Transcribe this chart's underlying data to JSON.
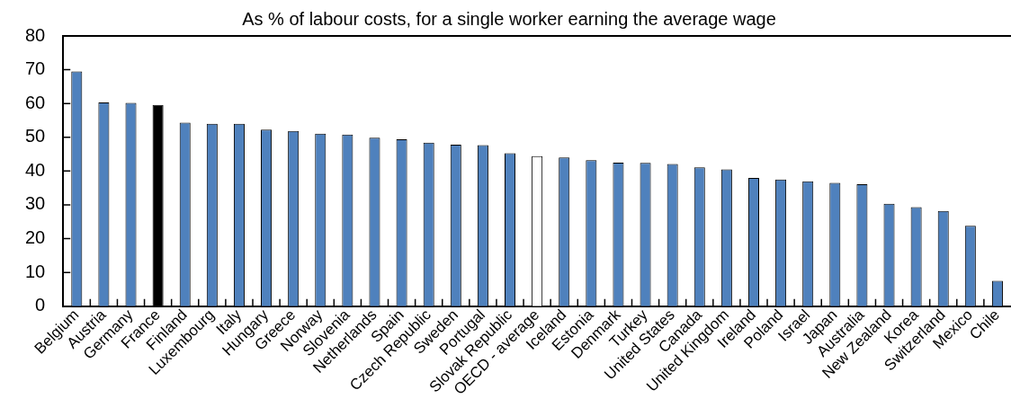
{
  "chart_data": {
    "type": "bar",
    "title": "As % of labour costs, for a single worker earning the average wage",
    "categories": [
      "Belgium",
      "Austria",
      "Germany",
      "France",
      "Finland",
      "Luxembourg",
      "Italy",
      "Hungary",
      "Greece",
      "Norway",
      "Slovenia",
      "Netherlands",
      "Spain",
      "Czech Republic",
      "Sweden",
      "Portugal",
      "Slovak Republic",
      "OECD - average",
      "Iceland",
      "Estonia",
      "Denmark",
      "Turkey",
      "United States",
      "Canada",
      "United Kingdom",
      "Ireland",
      "Poland",
      "Israel",
      "Japan",
      "Australia",
      "New Zealand",
      "Korea",
      "Switzerland",
      "Mexico",
      "Chile"
    ],
    "values": [
      69.5,
      60.3,
      60.2,
      59.6,
      54.3,
      54.0,
      54.0,
      52.3,
      51.9,
      51.1,
      50.8,
      49.9,
      49.4,
      48.4,
      47.8,
      47.7,
      45.3,
      44.4,
      44.0,
      43.2,
      42.5,
      42.4,
      42.1,
      41.1,
      40.5,
      38.0,
      37.5,
      37.0,
      36.5,
      36.1,
      30.3,
      29.3,
      28.2,
      23.8,
      7.5
    ],
    "colors": [
      "#4f81bd",
      "#4f81bd",
      "#4f81bd",
      "#000000",
      "#4f81bd",
      "#4f81bd",
      "#4f81bd",
      "#4f81bd",
      "#4f81bd",
      "#4f81bd",
      "#4f81bd",
      "#4f81bd",
      "#4f81bd",
      "#4f81bd",
      "#4f81bd",
      "#4f81bd",
      "#4f81bd",
      "#ffffff",
      "#4f81bd",
      "#4f81bd",
      "#4f81bd",
      "#4f81bd",
      "#4f81bd",
      "#4f81bd",
      "#4f81bd",
      "#4f81bd",
      "#4f81bd",
      "#4f81bd",
      "#4f81bd",
      "#4f81bd",
      "#4f81bd",
      "#4f81bd",
      "#4f81bd",
      "#4f81bd",
      "#4f81bd"
    ],
    "ylim": [
      0,
      80
    ],
    "yticks": [
      0,
      10,
      20,
      30,
      40,
      50,
      60,
      70,
      80
    ]
  }
}
